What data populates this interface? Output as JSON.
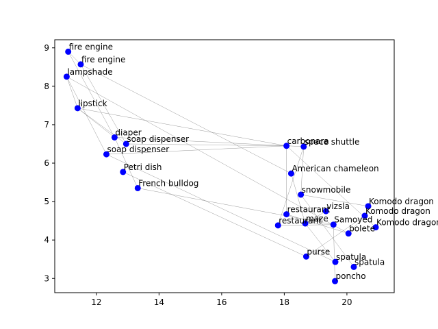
{
  "chart_data": {
    "type": "scatter",
    "title": "",
    "xlabel": "",
    "ylabel": "",
    "xlim": [
      10.67,
      21.51
    ],
    "ylim": [
      2.63,
      9.21
    ],
    "xticks": [
      12,
      14,
      16,
      18,
      20
    ],
    "yticks": [
      3,
      4,
      5,
      6,
      7,
      8,
      9
    ],
    "grid": false,
    "point_color": "#0000ff",
    "edge_color": "#808080",
    "points": [
      {
        "label": "fire engine",
        "x": 11.1,
        "y": 8.9
      },
      {
        "label": "fire engine",
        "x": 11.5,
        "y": 8.57
      },
      {
        "label": "lampshade",
        "x": 11.05,
        "y": 8.25
      },
      {
        "label": "lipstick",
        "x": 11.4,
        "y": 7.43
      },
      {
        "label": "diaper",
        "x": 12.58,
        "y": 6.67
      },
      {
        "label": "soap dispenser",
        "x": 12.95,
        "y": 6.5
      },
      {
        "label": "soap dispenser",
        "x": 12.32,
        "y": 6.23
      },
      {
        "label": "Petri dish",
        "x": 12.85,
        "y": 5.77
      },
      {
        "label": "French bulldog",
        "x": 13.32,
        "y": 5.35
      },
      {
        "label": "carbonara",
        "x": 18.07,
        "y": 6.45
      },
      {
        "label": "space shuttle",
        "x": 18.62,
        "y": 6.43
      },
      {
        "label": "American chameleon",
        "x": 18.22,
        "y": 5.73
      },
      {
        "label": "snowmobile",
        "x": 18.53,
        "y": 5.18
      },
      {
        "label": "vizsla",
        "x": 19.33,
        "y": 4.75
      },
      {
        "label": "restaurant",
        "x": 18.07,
        "y": 4.67
      },
      {
        "label": "maze",
        "x": 18.67,
        "y": 4.43
      },
      {
        "label": "restaurant",
        "x": 17.8,
        "y": 4.38
      },
      {
        "label": "Samoyed",
        "x": 19.57,
        "y": 4.4
      },
      {
        "label": "bolete",
        "x": 20.05,
        "y": 4.17
      },
      {
        "label": "Komodo dragon",
        "x": 20.68,
        "y": 4.88
      },
      {
        "label": "Komodo dragon",
        "x": 20.57,
        "y": 4.63
      },
      {
        "label": "Komodo dragon",
        "x": 20.92,
        "y": 4.33
      },
      {
        "label": "purse",
        "x": 18.7,
        "y": 3.57
      },
      {
        "label": "spatula",
        "x": 19.63,
        "y": 3.43
      },
      {
        "label": "spatula",
        "x": 20.22,
        "y": 3.3
      },
      {
        "label": "poncho",
        "x": 19.62,
        "y": 2.93
      }
    ],
    "edges": [
      [
        0,
        4
      ],
      [
        0,
        1
      ],
      [
        1,
        5
      ],
      [
        1,
        11
      ],
      [
        2,
        3
      ],
      [
        2,
        6
      ],
      [
        2,
        18
      ],
      [
        3,
        5
      ],
      [
        3,
        9
      ],
      [
        3,
        4
      ],
      [
        4,
        8
      ],
      [
        4,
        10
      ],
      [
        5,
        9
      ],
      [
        6,
        9
      ],
      [
        7,
        22
      ],
      [
        8,
        17
      ],
      [
        9,
        14
      ],
      [
        9,
        21
      ],
      [
        10,
        16
      ],
      [
        10,
        12
      ],
      [
        11,
        15
      ],
      [
        12,
        24
      ],
      [
        12,
        19
      ],
      [
        13,
        15
      ],
      [
        14,
        18
      ],
      [
        15,
        23
      ],
      [
        16,
        17
      ],
      [
        17,
        25
      ],
      [
        18,
        20
      ],
      [
        20,
        22
      ],
      [
        6,
        23
      ]
    ]
  }
}
